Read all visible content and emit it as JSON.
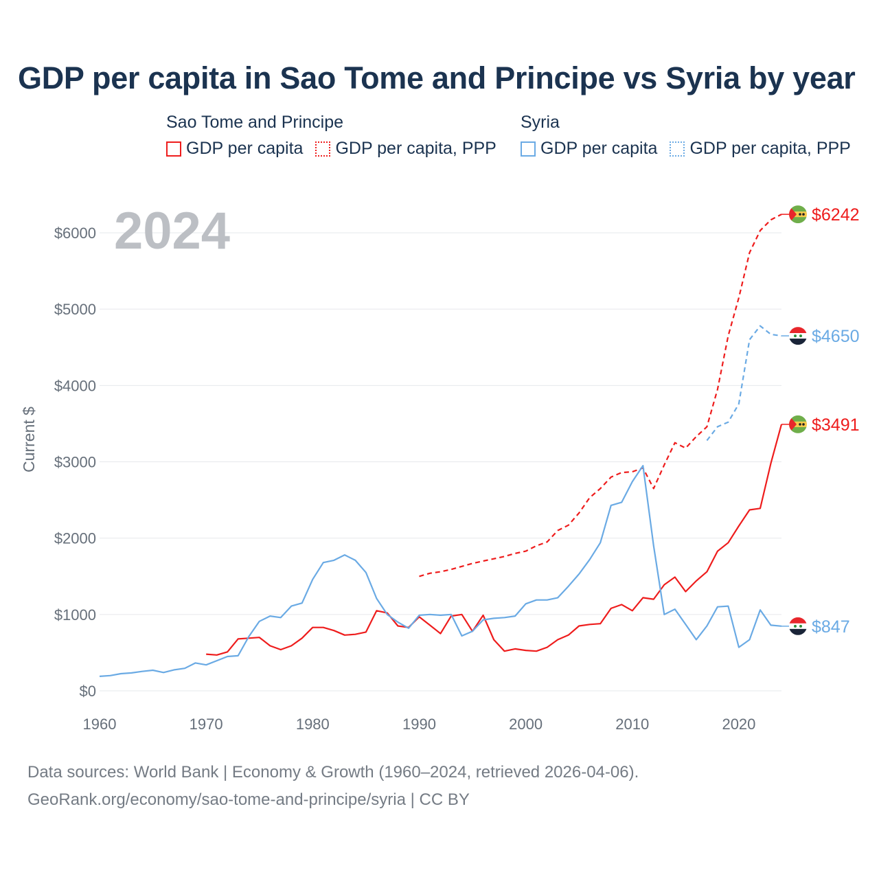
{
  "title": "GDP per capita in Sao Tome and Principe vs Syria by year",
  "legend": {
    "groups": [
      {
        "name": "Sao Tome and Principe",
        "color": "#ee1c1c",
        "items": [
          {
            "label": "GDP per capita",
            "style": "solid"
          },
          {
            "label": "GDP per capita, PPP",
            "style": "dotted"
          }
        ]
      },
      {
        "name": "Syria",
        "color": "#6aaae4",
        "items": [
          {
            "label": "GDP per capita",
            "style": "solid"
          },
          {
            "label": "GDP per capita, PPP",
            "style": "dotted"
          }
        ]
      }
    ]
  },
  "chart_data": {
    "type": "line",
    "title": "GDP per capita in Sao Tome and Principe vs Syria by year",
    "xlabel": "",
    "ylabel": "Current $",
    "xlim": [
      1960,
      2024
    ],
    "ylim": [
      0,
      6000
    ],
    "xticks": [
      1960,
      1970,
      1980,
      1990,
      2000,
      2010,
      2020
    ],
    "yticks": [
      0,
      1000,
      2000,
      3000,
      4000,
      5000,
      6000
    ],
    "ytick_labels": [
      "$0",
      "$1000",
      "$2000",
      "$3000",
      "$4000",
      "$5000",
      "$6000"
    ],
    "grid": true,
    "current_year": "2024",
    "series": [
      {
        "name": "Sao Tome and Principe GDP per capita",
        "color": "#ee1c1c",
        "dash": "solid",
        "end_label": "$3491",
        "flag": "sao-tome",
        "points": [
          [
            1970,
            480
          ],
          [
            1971,
            470
          ],
          [
            1972,
            510
          ],
          [
            1973,
            680
          ],
          [
            1974,
            690
          ],
          [
            1975,
            700
          ],
          [
            1976,
            590
          ],
          [
            1977,
            540
          ],
          [
            1978,
            590
          ],
          [
            1979,
            690
          ],
          [
            1980,
            830
          ],
          [
            1981,
            830
          ],
          [
            1982,
            790
          ],
          [
            1983,
            730
          ],
          [
            1984,
            740
          ],
          [
            1985,
            770
          ],
          [
            1986,
            1050
          ],
          [
            1987,
            1020
          ],
          [
            1988,
            850
          ],
          [
            1989,
            830
          ],
          [
            1990,
            970
          ],
          [
            1991,
            860
          ],
          [
            1992,
            750
          ],
          [
            1993,
            980
          ],
          [
            1994,
            1000
          ],
          [
            1995,
            780
          ],
          [
            1996,
            990
          ],
          [
            1997,
            670
          ],
          [
            1998,
            520
          ],
          [
            1999,
            550
          ],
          [
            2000,
            530
          ],
          [
            2001,
            520
          ],
          [
            2002,
            570
          ],
          [
            2003,
            670
          ],
          [
            2004,
            730
          ],
          [
            2005,
            850
          ],
          [
            2006,
            870
          ],
          [
            2007,
            880
          ],
          [
            2008,
            1080
          ],
          [
            2009,
            1130
          ],
          [
            2010,
            1050
          ],
          [
            2011,
            1220
          ],
          [
            2012,
            1200
          ],
          [
            2013,
            1390
          ],
          [
            2014,
            1490
          ],
          [
            2015,
            1300
          ],
          [
            2016,
            1440
          ],
          [
            2017,
            1560
          ],
          [
            2018,
            1830
          ],
          [
            2019,
            1940
          ],
          [
            2020,
            2160
          ],
          [
            2021,
            2370
          ],
          [
            2022,
            2390
          ],
          [
            2023,
            2980
          ],
          [
            2024,
            3491
          ]
        ]
      },
      {
        "name": "Sao Tome and Principe GDP per capita, PPP",
        "color": "#ee1c1c",
        "dash": "dashed",
        "end_label": "$6242",
        "flag": "sao-tome",
        "points": [
          [
            1990,
            1500
          ],
          [
            1991,
            1540
          ],
          [
            1992,
            1560
          ],
          [
            1993,
            1590
          ],
          [
            1994,
            1630
          ],
          [
            1995,
            1670
          ],
          [
            1996,
            1700
          ],
          [
            1997,
            1730
          ],
          [
            1998,
            1760
          ],
          [
            1999,
            1800
          ],
          [
            2000,
            1830
          ],
          [
            2001,
            1900
          ],
          [
            2002,
            1950
          ],
          [
            2003,
            2100
          ],
          [
            2004,
            2170
          ],
          [
            2005,
            2330
          ],
          [
            2006,
            2530
          ],
          [
            2007,
            2650
          ],
          [
            2008,
            2800
          ],
          [
            2009,
            2860
          ],
          [
            2010,
            2870
          ],
          [
            2011,
            2920
          ],
          [
            2012,
            2650
          ],
          [
            2013,
            2960
          ],
          [
            2014,
            3250
          ],
          [
            2015,
            3180
          ],
          [
            2016,
            3330
          ],
          [
            2017,
            3460
          ],
          [
            2018,
            3950
          ],
          [
            2019,
            4650
          ],
          [
            2020,
            5150
          ],
          [
            2021,
            5740
          ],
          [
            2022,
            6030
          ],
          [
            2023,
            6170
          ],
          [
            2024,
            6242
          ]
        ]
      },
      {
        "name": "Syria GDP per capita",
        "color": "#6aaae4",
        "dash": "solid",
        "end_label": "$847",
        "flag": "syria",
        "points": [
          [
            1960,
            190
          ],
          [
            1961,
            200
          ],
          [
            1962,
            225
          ],
          [
            1963,
            235
          ],
          [
            1964,
            255
          ],
          [
            1965,
            270
          ],
          [
            1966,
            240
          ],
          [
            1967,
            275
          ],
          [
            1968,
            295
          ],
          [
            1969,
            365
          ],
          [
            1970,
            340
          ],
          [
            1971,
            395
          ],
          [
            1972,
            450
          ],
          [
            1973,
            460
          ],
          [
            1974,
            710
          ],
          [
            1975,
            910
          ],
          [
            1976,
            980
          ],
          [
            1977,
            960
          ],
          [
            1978,
            1110
          ],
          [
            1979,
            1150
          ],
          [
            1980,
            1460
          ],
          [
            1981,
            1680
          ],
          [
            1982,
            1710
          ],
          [
            1983,
            1780
          ],
          [
            1984,
            1710
          ],
          [
            1985,
            1550
          ],
          [
            1986,
            1210
          ],
          [
            1987,
            1000
          ],
          [
            1988,
            900
          ],
          [
            1989,
            820
          ],
          [
            1990,
            990
          ],
          [
            1991,
            1000
          ],
          [
            1992,
            990
          ],
          [
            1993,
            1000
          ],
          [
            1994,
            720
          ],
          [
            1995,
            780
          ],
          [
            1996,
            930
          ],
          [
            1997,
            950
          ],
          [
            1998,
            960
          ],
          [
            1999,
            980
          ],
          [
            2000,
            1140
          ],
          [
            2001,
            1190
          ],
          [
            2002,
            1190
          ],
          [
            2003,
            1220
          ],
          [
            2004,
            1370
          ],
          [
            2005,
            1530
          ],
          [
            2006,
            1720
          ],
          [
            2007,
            1940
          ],
          [
            2008,
            2430
          ],
          [
            2009,
            2470
          ],
          [
            2010,
            2740
          ],
          [
            2011,
            2950
          ],
          [
            2012,
            1900
          ],
          [
            2013,
            1000
          ],
          [
            2014,
            1070
          ],
          [
            2015,
            870
          ],
          [
            2016,
            670
          ],
          [
            2017,
            850
          ],
          [
            2018,
            1100
          ],
          [
            2019,
            1110
          ],
          [
            2020,
            570
          ],
          [
            2021,
            670
          ],
          [
            2022,
            1060
          ],
          [
            2023,
            860
          ],
          [
            2024,
            847
          ]
        ]
      },
      {
        "name": "Syria GDP per capita, PPP",
        "color": "#6aaae4",
        "dash": "dashed",
        "end_label": "$4650",
        "flag": "syria",
        "points": [
          [
            2017,
            3280
          ],
          [
            2018,
            3460
          ],
          [
            2019,
            3520
          ],
          [
            2020,
            3760
          ],
          [
            2021,
            4600
          ],
          [
            2022,
            4780
          ],
          [
            2023,
            4670
          ],
          [
            2024,
            4650
          ]
        ]
      }
    ]
  },
  "footer": {
    "line1": "Data sources: World Bank | Economy & Growth (1960–2024, retrieved 2026-04-06).",
    "line2": "GeoRank.org/economy/sao-tome-and-principe/syria | CC BY"
  }
}
